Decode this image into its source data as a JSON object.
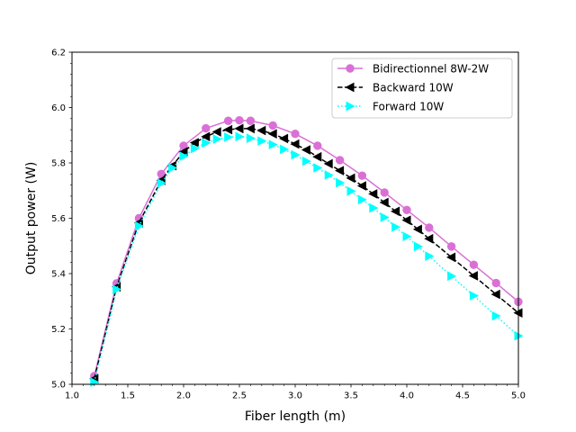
{
  "chart_data": {
    "type": "line",
    "title": "",
    "xlabel": "Fiber length (m)",
    "ylabel": "Output power (W)",
    "xlim": [
      1.0,
      5.0
    ],
    "ylim": [
      5.0,
      6.2
    ],
    "xticks": [
      "1.0",
      "1.5",
      "2.0",
      "2.5",
      "3.0",
      "3.5",
      "4.0",
      "4.5",
      "5.0"
    ],
    "yticks": [
      "5.0",
      "5.2",
      "5.4",
      "5.6",
      "5.8",
      "6.0",
      "6.2"
    ],
    "grid": false,
    "legend_position": "top-right",
    "series": [
      {
        "name": "Bidirectionnel 8W-2W",
        "color": "#da70d6",
        "line_style": "solid",
        "marker": "circle",
        "x": [
          1.2,
          1.4,
          1.6,
          1.8,
          2.0,
          2.2,
          2.4,
          2.5,
          2.6,
          2.8,
          3.0,
          3.2,
          3.4,
          3.6,
          3.8,
          4.0,
          4.2,
          4.4,
          4.6,
          4.8,
          5.0
        ],
        "y": [
          5.03,
          5.365,
          5.6,
          5.76,
          5.862,
          5.925,
          5.952,
          5.954,
          5.952,
          5.935,
          5.905,
          5.862,
          5.81,
          5.754,
          5.693,
          5.63,
          5.566,
          5.498,
          5.432,
          5.366,
          5.298
        ]
      },
      {
        "name": "Backward 10W",
        "color": "#000000",
        "line_style": "dashed",
        "marker": "triangle-left",
        "x": [
          1.2,
          1.4,
          1.6,
          1.8,
          1.9,
          2.0,
          2.1,
          2.2,
          2.3,
          2.4,
          2.5,
          2.6,
          2.7,
          2.8,
          2.9,
          3.0,
          3.1,
          3.2,
          3.3,
          3.4,
          3.5,
          3.6,
          3.7,
          3.8,
          3.9,
          4.0,
          4.1,
          4.2,
          4.4,
          4.6,
          4.8,
          5.0
        ],
        "y": [
          5.02,
          5.352,
          5.584,
          5.737,
          5.79,
          5.84,
          5.873,
          5.895,
          5.912,
          5.92,
          5.924,
          5.924,
          5.917,
          5.905,
          5.888,
          5.868,
          5.847,
          5.822,
          5.797,
          5.772,
          5.745,
          5.717,
          5.688,
          5.657,
          5.625,
          5.593,
          5.56,
          5.526,
          5.459,
          5.392,
          5.325,
          5.258
        ]
      },
      {
        "name": "Forward 10W",
        "color": "#00ffff",
        "line_style": "dotted",
        "marker": "triangle-right",
        "x": [
          1.2,
          1.4,
          1.6,
          1.8,
          1.9,
          2.0,
          2.1,
          2.2,
          2.3,
          2.4,
          2.5,
          2.6,
          2.7,
          2.8,
          2.9,
          3.0,
          3.1,
          3.2,
          3.3,
          3.4,
          3.5,
          3.6,
          3.7,
          3.8,
          3.9,
          4.0,
          4.1,
          4.2,
          4.4,
          4.6,
          4.8,
          5.0
        ],
        "y": [
          5.008,
          5.343,
          5.572,
          5.727,
          5.782,
          5.824,
          5.852,
          5.872,
          5.886,
          5.893,
          5.895,
          5.889,
          5.879,
          5.866,
          5.849,
          5.829,
          5.806,
          5.782,
          5.756,
          5.728,
          5.698,
          5.667,
          5.637,
          5.603,
          5.568,
          5.534,
          5.498,
          5.463,
          5.391,
          5.32,
          5.247,
          5.175
        ]
      }
    ]
  }
}
